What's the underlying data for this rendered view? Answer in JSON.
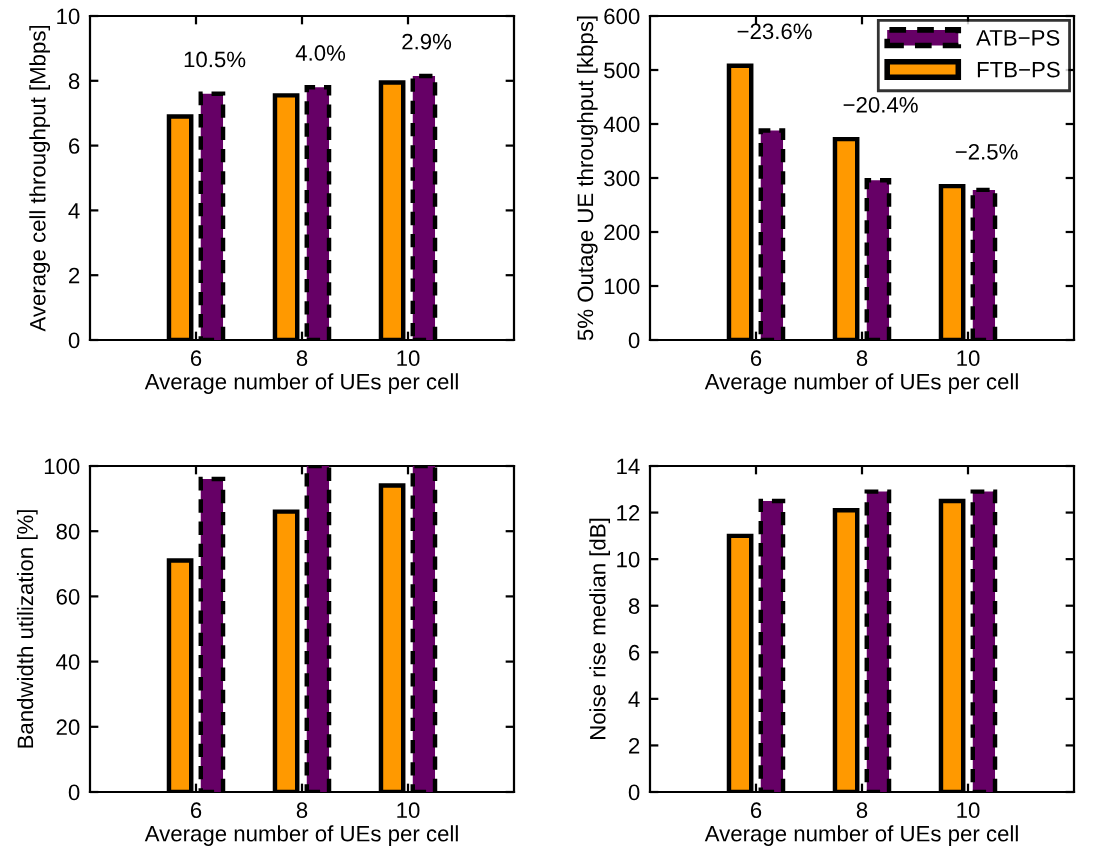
{
  "chart_data": [
    {
      "type": "bar",
      "x": [
        6,
        8,
        10
      ],
      "xlim": [
        4,
        12
      ],
      "xticks": [
        6,
        8,
        10
      ],
      "ylim": [
        0,
        10
      ],
      "yticks": [
        0,
        2,
        4,
        6,
        8,
        10
      ],
      "xlabel": "Average number of UEs per cell",
      "ylabel": "Average cell throughput [Mbps]",
      "grid": false,
      "legend": false,
      "series": [
        {
          "color": "#ff9900",
          "values": [
            6.9,
            7.55,
            7.95
          ]
        },
        {
          "color": "#660066",
          "line_style": "dashed",
          "values": [
            7.6,
            7.8,
            8.15
          ]
        }
      ],
      "annotations": [
        "10.5%",
        "4.0%",
        "2.9%"
      ]
    },
    {
      "type": "bar",
      "x": [
        6,
        8,
        10
      ],
      "xlim": [
        4,
        12
      ],
      "xticks": [
        6,
        8,
        10
      ],
      "ylim": [
        0,
        600
      ],
      "yticks": [
        0,
        100,
        200,
        300,
        400,
        500,
        600
      ],
      "xlabel": "Average number of UEs per cell",
      "ylabel": "5% Outage UE throughput [kbps]",
      "grid": false,
      "legend": "top right",
      "series": [
        {
          "name": "FTB−PS",
          "color": "#ff9900",
          "values": [
            508,
            372,
            285
          ]
        },
        {
          "name": "ATB−PS",
          "color": "#660066",
          "line_style": "dashed",
          "values": [
            388,
            296,
            278
          ]
        }
      ],
      "annotations": [
        "−23.6%",
        "−20.4%",
        "−2.5%"
      ]
    },
    {
      "type": "bar",
      "x": [
        6,
        8,
        10
      ],
      "xlim": [
        4,
        12
      ],
      "xticks": [
        6,
        8,
        10
      ],
      "ylim": [
        0,
        100
      ],
      "yticks": [
        0,
        20,
        40,
        60,
        80,
        100
      ],
      "xlabel": "Average number of UEs per cell",
      "ylabel": "Bandwidth utilization [%]",
      "grid": false,
      "legend": false,
      "series": [
        {
          "color": "#ff9900",
          "values": [
            71,
            86,
            94
          ]
        },
        {
          "color": "#660066",
          "line_style": "dashed",
          "values": [
            96,
            100,
            100
          ]
        }
      ]
    },
    {
      "type": "bar",
      "x": [
        6,
        8,
        10
      ],
      "xlim": [
        4,
        12
      ],
      "xticks": [
        6,
        8,
        10
      ],
      "ylim": [
        0,
        14
      ],
      "yticks": [
        0,
        2,
        4,
        6,
        8,
        10,
        12,
        14
      ],
      "xlabel": "Average number of UEs per cell",
      "ylabel": "Noise rise median [dB]",
      "grid": false,
      "legend": false,
      "series": [
        {
          "color": "#ff9900",
          "values": [
            11.0,
            12.1,
            12.5
          ]
        },
        {
          "color": "#660066",
          "line_style": "dashed",
          "values": [
            12.5,
            12.9,
            12.9
          ]
        }
      ]
    }
  ]
}
